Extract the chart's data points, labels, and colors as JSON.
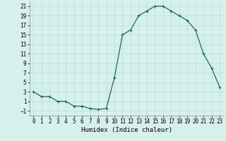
{
  "x": [
    0,
    1,
    2,
    3,
    4,
    5,
    6,
    7,
    8,
    9,
    10,
    11,
    12,
    13,
    14,
    15,
    16,
    17,
    18,
    19,
    20,
    21,
    22,
    23
  ],
  "y": [
    3,
    2,
    2,
    1,
    1,
    0,
    0,
    -0.5,
    -0.7,
    -0.5,
    6,
    15,
    16,
    19,
    20,
    21,
    21,
    20,
    19,
    18,
    16,
    11,
    8,
    4
  ],
  "title": "",
  "xlabel": "Humidex (Indice chaleur)",
  "ylabel": "",
  "xlim": [
    -0.5,
    23.5
  ],
  "ylim": [
    -2,
    22
  ],
  "yticks": [
    -1,
    1,
    3,
    5,
    7,
    9,
    11,
    13,
    15,
    17,
    19,
    21
  ],
  "xticks": [
    0,
    1,
    2,
    3,
    4,
    5,
    6,
    7,
    8,
    9,
    10,
    11,
    12,
    13,
    14,
    15,
    16,
    17,
    18,
    19,
    20,
    21,
    22,
    23
  ],
  "line_color": "#1a6b5a",
  "marker": "+",
  "bg_color": "#d6f0ec",
  "grid_color": "#b8ddd8",
  "axis_label_fontsize": 6.5,
  "tick_fontsize": 5.5
}
